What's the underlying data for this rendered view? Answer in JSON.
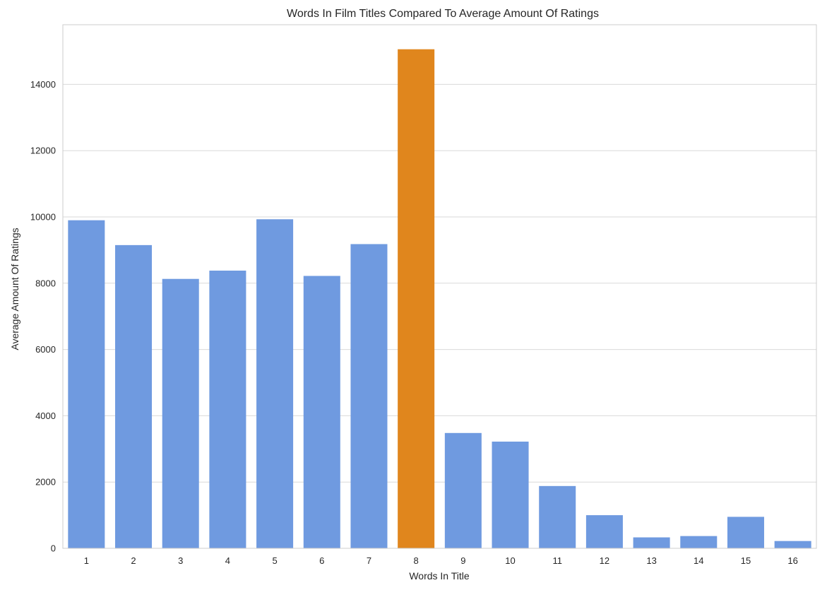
{
  "chart_data": {
    "type": "bar",
    "title": "Words In Film Titles Compared To Average Amount Of Ratings",
    "xlabel": "Words In Title",
    "ylabel": "Average Amount Of Ratings",
    "categories": [
      "1",
      "2",
      "3",
      "4",
      "5",
      "6",
      "7",
      "8",
      "9",
      "10",
      "11",
      "12",
      "13",
      "14",
      "15",
      "16"
    ],
    "values": [
      9900,
      9150,
      8130,
      8380,
      9930,
      8220,
      9180,
      15060,
      3480,
      3220,
      1880,
      1000,
      330,
      370,
      950,
      220
    ],
    "ylim": [
      0,
      15800
    ],
    "yticks": [
      0,
      2000,
      4000,
      6000,
      8000,
      10000,
      12000,
      14000
    ],
    "grid": "horizontal",
    "legend": "none",
    "colors": {
      "default_bar": "#6F9AE0",
      "highlight_bar": "#E0861D",
      "highlight_category": "8",
      "grid": "#D9D9D9",
      "spine": "#CCCCCC",
      "text": "#262626"
    }
  }
}
